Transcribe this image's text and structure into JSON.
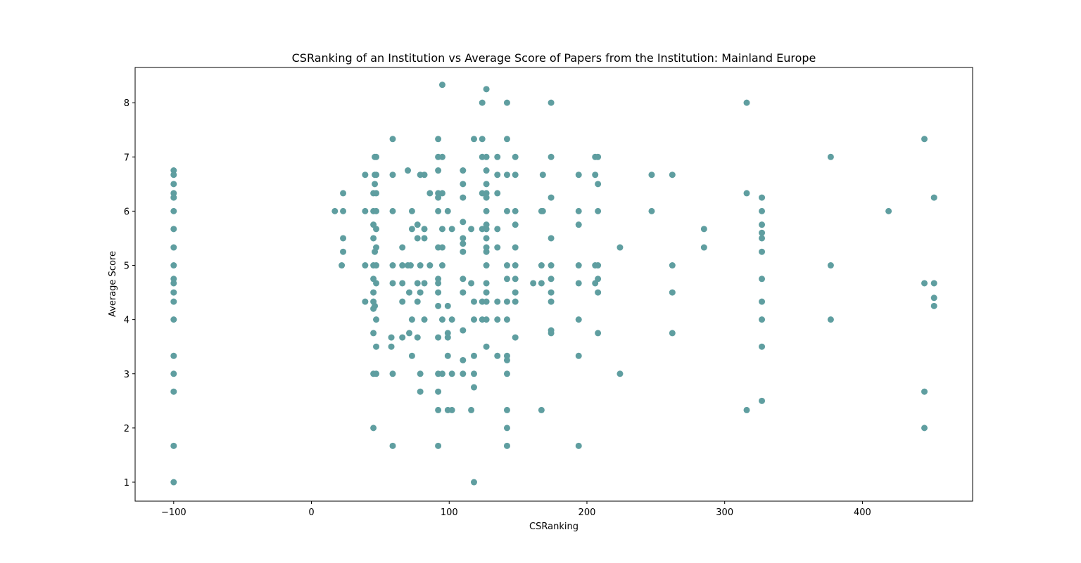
{
  "chart_data": {
    "type": "scatter",
    "title": "CSRanking of an Institution vs Average Score of Papers from the Institution: Mainland Europe",
    "xlabel": "CSRanking",
    "ylabel": "Average Score",
    "xlim": [
      -128,
      480
    ],
    "ylim": [
      0.65,
      8.65
    ],
    "xticks": [
      -100,
      0,
      100,
      200,
      300,
      400
    ],
    "xtick_labels": [
      "−100",
      "0",
      "100",
      "200",
      "300",
      "400"
    ],
    "yticks": [
      1,
      2,
      3,
      4,
      5,
      6,
      7,
      8
    ],
    "ytick_labels": [
      "1",
      "2",
      "3",
      "4",
      "5",
      "6",
      "7",
      "8"
    ],
    "grid": false,
    "legend": "none",
    "marker_color": "#5f9ea0",
    "series": [
      {
        "points": [
          [
            -100,
            6.75
          ],
          [
            -100,
            6.67
          ],
          [
            -100,
            6.5
          ],
          [
            -100,
            6.33
          ],
          [
            -100,
            6.25
          ],
          [
            -100,
            6.0
          ],
          [
            -100,
            5.67
          ],
          [
            -100,
            5.33
          ],
          [
            -100,
            5.0
          ],
          [
            -100,
            4.75
          ],
          [
            -100,
            4.67
          ],
          [
            -100,
            4.5
          ],
          [
            -100,
            4.33
          ],
          [
            -100,
            4.0
          ],
          [
            -100,
            3.33
          ],
          [
            -100,
            3.0
          ],
          [
            -100,
            2.67
          ],
          [
            -100,
            1.67
          ],
          [
            -100,
            1.0
          ],
          [
            17,
            6.0
          ],
          [
            22,
            5.0
          ],
          [
            23,
            6.33
          ],
          [
            23,
            6.0
          ],
          [
            23,
            5.5
          ],
          [
            23,
            5.25
          ],
          [
            39,
            6.67
          ],
          [
            39,
            6.0
          ],
          [
            39,
            5.0
          ],
          [
            39,
            4.33
          ],
          [
            45,
            6.33
          ],
          [
            45,
            6.0
          ],
          [
            45,
            5.75
          ],
          [
            45,
            5.5
          ],
          [
            45,
            5.0
          ],
          [
            45,
            4.75
          ],
          [
            45,
            4.5
          ],
          [
            45,
            4.33
          ],
          [
            45,
            4.2
          ],
          [
            45,
            3.75
          ],
          [
            45,
            3.0
          ],
          [
            45,
            2.0
          ],
          [
            46,
            7.0
          ],
          [
            46,
            6.67
          ],
          [
            46,
            6.5
          ],
          [
            46,
            5.25
          ],
          [
            46,
            4.25
          ],
          [
            47,
            7.0
          ],
          [
            47,
            6.67
          ],
          [
            47,
            6.33
          ],
          [
            47,
            6.0
          ],
          [
            47,
            5.67
          ],
          [
            47,
            5.33
          ],
          [
            47,
            5.0
          ],
          [
            47,
            4.67
          ],
          [
            47,
            4.0
          ],
          [
            47,
            3.5
          ],
          [
            47,
            3.0
          ],
          [
            58,
            3.67
          ],
          [
            58,
            3.5
          ],
          [
            59,
            7.33
          ],
          [
            59,
            6.67
          ],
          [
            59,
            6.0
          ],
          [
            59,
            5.0
          ],
          [
            59,
            4.67
          ],
          [
            59,
            3.0
          ],
          [
            59,
            1.67
          ],
          [
            66,
            5.33
          ],
          [
            66,
            5.0
          ],
          [
            66,
            4.67
          ],
          [
            66,
            4.33
          ],
          [
            66,
            3.67
          ],
          [
            70,
            6.75
          ],
          [
            70,
            5.0
          ],
          [
            71,
            4.5
          ],
          [
            71,
            3.75
          ],
          [
            72,
            5.0
          ],
          [
            73,
            6.0
          ],
          [
            73,
            5.67
          ],
          [
            73,
            4.0
          ],
          [
            73,
            3.33
          ],
          [
            77,
            5.75
          ],
          [
            77,
            5.5
          ],
          [
            77,
            4.67
          ],
          [
            77,
            4.33
          ],
          [
            77,
            3.67
          ],
          [
            79,
            6.67
          ],
          [
            79,
            5.0
          ],
          [
            79,
            4.5
          ],
          [
            79,
            3.0
          ],
          [
            79,
            2.67
          ],
          [
            82,
            6.67
          ],
          [
            82,
            5.67
          ],
          [
            82,
            5.5
          ],
          [
            82,
            4.67
          ],
          [
            82,
            4.0
          ],
          [
            86,
            6.33
          ],
          [
            86,
            5.0
          ],
          [
            92,
            7.33
          ],
          [
            92,
            7.0
          ],
          [
            92,
            6.75
          ],
          [
            92,
            6.33
          ],
          [
            92,
            6.25
          ],
          [
            92,
            6.0
          ],
          [
            92,
            5.33
          ],
          [
            92,
            4.75
          ],
          [
            92,
            4.67
          ],
          [
            92,
            4.5
          ],
          [
            92,
            4.25
          ],
          [
            92,
            3.67
          ],
          [
            92,
            3.0
          ],
          [
            92,
            2.67
          ],
          [
            92,
            2.33
          ],
          [
            92,
            1.67
          ],
          [
            95,
            8.33
          ],
          [
            95,
            7.0
          ],
          [
            95,
            6.33
          ],
          [
            95,
            5.67
          ],
          [
            95,
            5.33
          ],
          [
            95,
            5.0
          ],
          [
            95,
            4.0
          ],
          [
            95,
            3.0
          ],
          [
            99,
            6.0
          ],
          [
            99,
            4.25
          ],
          [
            99,
            3.75
          ],
          [
            99,
            3.67
          ],
          [
            99,
            3.33
          ],
          [
            99,
            2.33
          ],
          [
            102,
            5.67
          ],
          [
            102,
            4.0
          ],
          [
            102,
            3.0
          ],
          [
            102,
            2.33
          ],
          [
            110,
            6.75
          ],
          [
            110,
            6.5
          ],
          [
            110,
            6.25
          ],
          [
            110,
            5.8
          ],
          [
            110,
            5.5
          ],
          [
            110,
            5.4
          ],
          [
            110,
            5.25
          ],
          [
            110,
            4.75
          ],
          [
            110,
            4.5
          ],
          [
            110,
            3.8
          ],
          [
            110,
            3.25
          ],
          [
            110,
            3.0
          ],
          [
            116,
            5.67
          ],
          [
            116,
            4.67
          ],
          [
            116,
            2.33
          ],
          [
            118,
            7.33
          ],
          [
            118,
            4.33
          ],
          [
            118,
            4.0
          ],
          [
            118,
            3.33
          ],
          [
            118,
            3.0
          ],
          [
            118,
            2.75
          ],
          [
            118,
            1.0
          ],
          [
            124,
            8.0
          ],
          [
            124,
            7.33
          ],
          [
            124,
            7.0
          ],
          [
            124,
            6.33
          ],
          [
            124,
            5.67
          ],
          [
            124,
            4.33
          ],
          [
            124,
            4.0
          ],
          [
            127,
            8.25
          ],
          [
            127,
            7.0
          ],
          [
            127,
            6.75
          ],
          [
            127,
            6.5
          ],
          [
            127,
            6.33
          ],
          [
            127,
            6.25
          ],
          [
            127,
            6.0
          ],
          [
            127,
            5.75
          ],
          [
            127,
            5.67
          ],
          [
            127,
            5.5
          ],
          [
            127,
            5.33
          ],
          [
            127,
            5.25
          ],
          [
            127,
            5.0
          ],
          [
            127,
            4.67
          ],
          [
            127,
            4.5
          ],
          [
            127,
            4.33
          ],
          [
            127,
            4.0
          ],
          [
            127,
            3.5
          ],
          [
            135,
            7.0
          ],
          [
            135,
            6.67
          ],
          [
            135,
            6.33
          ],
          [
            135,
            5.67
          ],
          [
            135,
            5.33
          ],
          [
            135,
            4.33
          ],
          [
            135,
            4.0
          ],
          [
            135,
            3.33
          ],
          [
            142,
            8.0
          ],
          [
            142,
            7.33
          ],
          [
            142,
            6.67
          ],
          [
            142,
            6.0
          ],
          [
            142,
            5.0
          ],
          [
            142,
            4.75
          ],
          [
            142,
            4.33
          ],
          [
            142,
            4.0
          ],
          [
            142,
            3.33
          ],
          [
            142,
            3.25
          ],
          [
            142,
            3.0
          ],
          [
            142,
            2.33
          ],
          [
            142,
            2.0
          ],
          [
            142,
            1.67
          ],
          [
            148,
            7.0
          ],
          [
            148,
            6.67
          ],
          [
            148,
            6.0
          ],
          [
            148,
            5.75
          ],
          [
            148,
            5.33
          ],
          [
            148,
            5.0
          ],
          [
            148,
            4.75
          ],
          [
            148,
            4.5
          ],
          [
            148,
            4.33
          ],
          [
            148,
            3.67
          ],
          [
            161,
            4.67
          ],
          [
            167,
            6.0
          ],
          [
            167,
            5.0
          ],
          [
            167,
            4.67
          ],
          [
            167,
            2.33
          ],
          [
            168,
            6.67
          ],
          [
            168,
            6.0
          ],
          [
            174,
            8.0
          ],
          [
            174,
            7.0
          ],
          [
            174,
            6.25
          ],
          [
            174,
            5.5
          ],
          [
            174,
            5.0
          ],
          [
            174,
            4.75
          ],
          [
            174,
            4.5
          ],
          [
            174,
            4.33
          ],
          [
            174,
            3.8
          ],
          [
            174,
            3.75
          ],
          [
            194,
            6.67
          ],
          [
            194,
            6.0
          ],
          [
            194,
            5.75
          ],
          [
            194,
            5.0
          ],
          [
            194,
            4.67
          ],
          [
            194,
            4.0
          ],
          [
            194,
            3.33
          ],
          [
            194,
            1.67
          ],
          [
            206,
            7.0
          ],
          [
            206,
            6.67
          ],
          [
            206,
            5.0
          ],
          [
            206,
            4.67
          ],
          [
            208,
            7.0
          ],
          [
            208,
            6.5
          ],
          [
            208,
            6.0
          ],
          [
            208,
            5.0
          ],
          [
            208,
            4.75
          ],
          [
            208,
            4.5
          ],
          [
            208,
            3.75
          ],
          [
            224,
            5.33
          ],
          [
            224,
            3.0
          ],
          [
            247,
            6.67
          ],
          [
            247,
            6.0
          ],
          [
            262,
            6.67
          ],
          [
            262,
            5.0
          ],
          [
            262,
            4.5
          ],
          [
            262,
            3.75
          ],
          [
            285,
            5.67
          ],
          [
            285,
            5.33
          ],
          [
            316,
            8.0
          ],
          [
            316,
            6.33
          ],
          [
            316,
            2.33
          ],
          [
            327,
            6.25
          ],
          [
            327,
            6.0
          ],
          [
            327,
            5.75
          ],
          [
            327,
            5.6
          ],
          [
            327,
            5.5
          ],
          [
            327,
            5.25
          ],
          [
            327,
            4.75
          ],
          [
            327,
            4.33
          ],
          [
            327,
            4.0
          ],
          [
            327,
            3.5
          ],
          [
            327,
            2.5
          ],
          [
            377,
            7.0
          ],
          [
            377,
            5.0
          ],
          [
            377,
            4.0
          ],
          [
            419,
            6.0
          ],
          [
            445,
            7.33
          ],
          [
            445,
            4.67
          ],
          [
            445,
            2.67
          ],
          [
            445,
            2.0
          ],
          [
            452,
            6.25
          ],
          [
            452,
            4.67
          ],
          [
            452,
            4.4
          ],
          [
            452,
            4.25
          ]
        ]
      }
    ]
  }
}
